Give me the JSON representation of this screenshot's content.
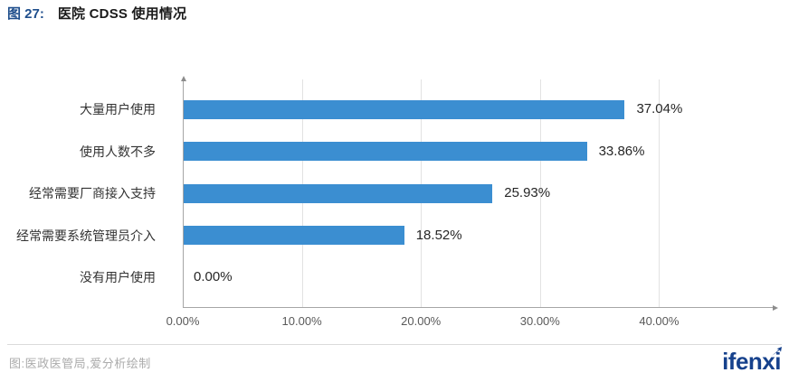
{
  "header": {
    "figure_label": "图 27:",
    "title": "医院 CDSS 使用情况"
  },
  "chart_data": {
    "type": "bar",
    "orientation": "horizontal",
    "title": "医院 CDSS 使用情况",
    "categories": [
      "大量用户使用",
      "使用人数不多",
      "经常需要厂商接入支持",
      "经常需要系统管理员介入",
      "没有用户使用"
    ],
    "values": [
      37.04,
      33.86,
      25.93,
      18.52,
      0.0
    ],
    "value_labels": [
      "37.04%",
      "33.86%",
      "25.93%",
      "18.52%",
      "0.00%"
    ],
    "x_tick_labels": [
      "0.00%",
      "10.00%",
      "20.00%",
      "30.00%",
      "40.00%"
    ],
    "x_tick_values": [
      0,
      10,
      20,
      30,
      40
    ],
    "axis_range": [
      0,
      50
    ],
    "grid": "vertical-major",
    "legend": "none",
    "bar_color": "#3B8ED1"
  },
  "footer": {
    "source": "图:医政医管局,爱分析绘制",
    "logo": "ifenxi"
  }
}
